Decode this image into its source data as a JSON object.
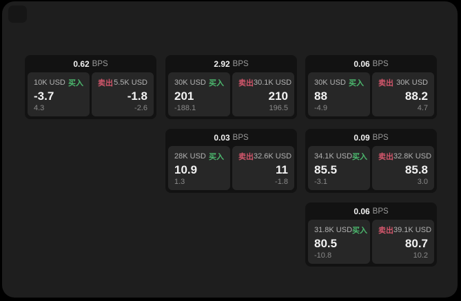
{
  "colors": {
    "background_outside": "#000000",
    "panel_background": "#1e1e1e",
    "card_background": "#121212",
    "tile_background": "#272727",
    "buy_green": "#4cb86e",
    "sell_red": "#d1566b",
    "value_white": "#f2f2f2",
    "label_gray": "#b3b3b3",
    "dim_gray": "#8a8a8a"
  },
  "cards": [
    {
      "bps_value": "0.62",
      "bps_unit": "BPS",
      "col": 0,
      "row": 0,
      "buy": {
        "amount": "10K USD",
        "side_label": "买入",
        "price": "-3.7",
        "delta": "4.3"
      },
      "sell": {
        "amount": "5.5K USD",
        "side_label": "卖出",
        "price": "-1.8",
        "delta": "-2.6"
      }
    },
    {
      "bps_value": "2.92",
      "bps_unit": "BPS",
      "col": 1,
      "row": 0,
      "buy": {
        "amount": "30K USD",
        "side_label": "买入",
        "price": "201",
        "delta": "-188.1"
      },
      "sell": {
        "amount": "30.1K USD",
        "side_label": "卖出",
        "price": "210",
        "delta": "196.5"
      }
    },
    {
      "bps_value": "0.06",
      "bps_unit": "BPS",
      "col": 2,
      "row": 0,
      "buy": {
        "amount": "30K USD",
        "side_label": "买入",
        "price": "88",
        "delta": "-4.9"
      },
      "sell": {
        "amount": "30K USD",
        "side_label": "卖出",
        "price": "88.2",
        "delta": "4.7"
      }
    },
    {
      "bps_value": "0.03",
      "bps_unit": "BPS",
      "col": 1,
      "row": 1,
      "buy": {
        "amount": "28K USD",
        "side_label": "买入",
        "price": "10.9",
        "delta": "1.3"
      },
      "sell": {
        "amount": "32.6K USD",
        "side_label": "卖出",
        "price": "11",
        "delta": "-1.8"
      }
    },
    {
      "bps_value": "0.09",
      "bps_unit": "BPS",
      "col": 2,
      "row": 1,
      "buy": {
        "amount": "34.1K USD",
        "side_label": "买入",
        "price": "85.5",
        "delta": "-3.1"
      },
      "sell": {
        "amount": "32.8K USD",
        "side_label": "卖出",
        "price": "85.8",
        "delta": "3.0"
      }
    },
    {
      "bps_value": "0.06",
      "bps_unit": "BPS",
      "col": 2,
      "row": 2,
      "buy": {
        "amount": "31.8K USD",
        "side_label": "买入",
        "price": "80.5",
        "delta": "-10.8"
      },
      "sell": {
        "amount": "39.1K USD",
        "side_label": "卖出",
        "price": "80.7",
        "delta": "10.2"
      }
    }
  ]
}
